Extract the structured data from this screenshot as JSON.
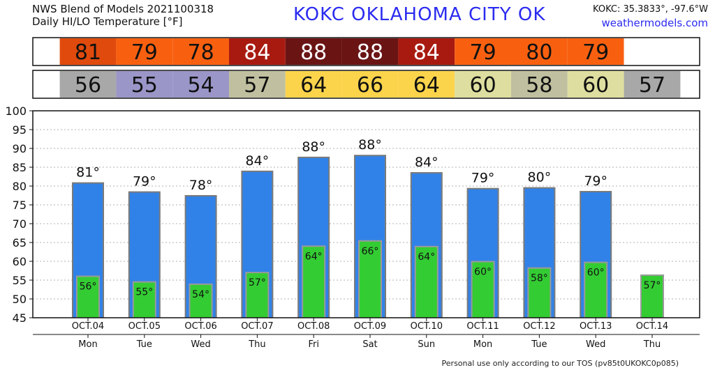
{
  "header": {
    "title_line1": "NWS Blend of Models 2021100318",
    "title_line2": "Daily HI/LO Temperature [°F]",
    "station": "KOKC   OKLAHOMA CITY   OK",
    "coords": "KOKC: 35.3833°, -97.6°W",
    "site": "weathermodels.com"
  },
  "footer": "Personal use only according to our TOS (pv85t0UKOKC0p085)",
  "chart_data": {
    "type": "bar",
    "title": "Daily HI/LO Temperature [°F]",
    "categories": [
      "OCT.04",
      "OCT.05",
      "OCT.06",
      "OCT.07",
      "OCT.08",
      "OCT.09",
      "OCT.10",
      "OCT.11",
      "OCT.12",
      "OCT.13",
      "OCT.14"
    ],
    "days": [
      "Mon",
      "Tue",
      "Wed",
      "Thu",
      "Fri",
      "Sat",
      "Sun",
      "Mon",
      "Tue",
      "Wed",
      "Thu"
    ],
    "series": [
      {
        "name": "HI",
        "values": [
          81,
          79,
          78,
          84,
          88,
          88,
          84,
          79,
          80,
          79,
          null
        ],
        "exact": [
          81,
          78.6,
          77.6,
          84.1,
          87.8,
          88.3,
          83.7,
          79.5,
          79.7,
          78.7,
          null
        ],
        "color": "#3182e8"
      },
      {
        "name": "LO",
        "values": [
          56,
          55,
          54,
          57,
          64,
          66,
          64,
          60,
          58,
          60,
          57
        ],
        "exact": [
          56.2,
          54.7,
          54.1,
          57.2,
          64.2,
          65.6,
          64.1,
          60.1,
          58.4,
          59.9,
          56.5
        ],
        "color": "#33cc33"
      }
    ],
    "ylim": [
      45,
      100
    ],
    "yticks": [
      45,
      50,
      55,
      60,
      65,
      70,
      75,
      80,
      85,
      90,
      95,
      100
    ],
    "grid": true,
    "hi_box_colors": [
      "#e04a0c",
      "#f86010",
      "#f86010",
      "#a81a10",
      "#6a1414",
      "#6a1414",
      "#a81a10",
      "#f86010",
      "#f86010",
      "#f86010",
      "#ffffff"
    ],
    "lo_box_colors": [
      "#a8a8a8",
      "#9a96c8",
      "#9a96c8",
      "#c0c0a0",
      "#fcd44c",
      "#fcd44c",
      "#fcd44c",
      "#dedea0",
      "#c0c0a0",
      "#dedea0",
      "#a8a8a8"
    ]
  }
}
